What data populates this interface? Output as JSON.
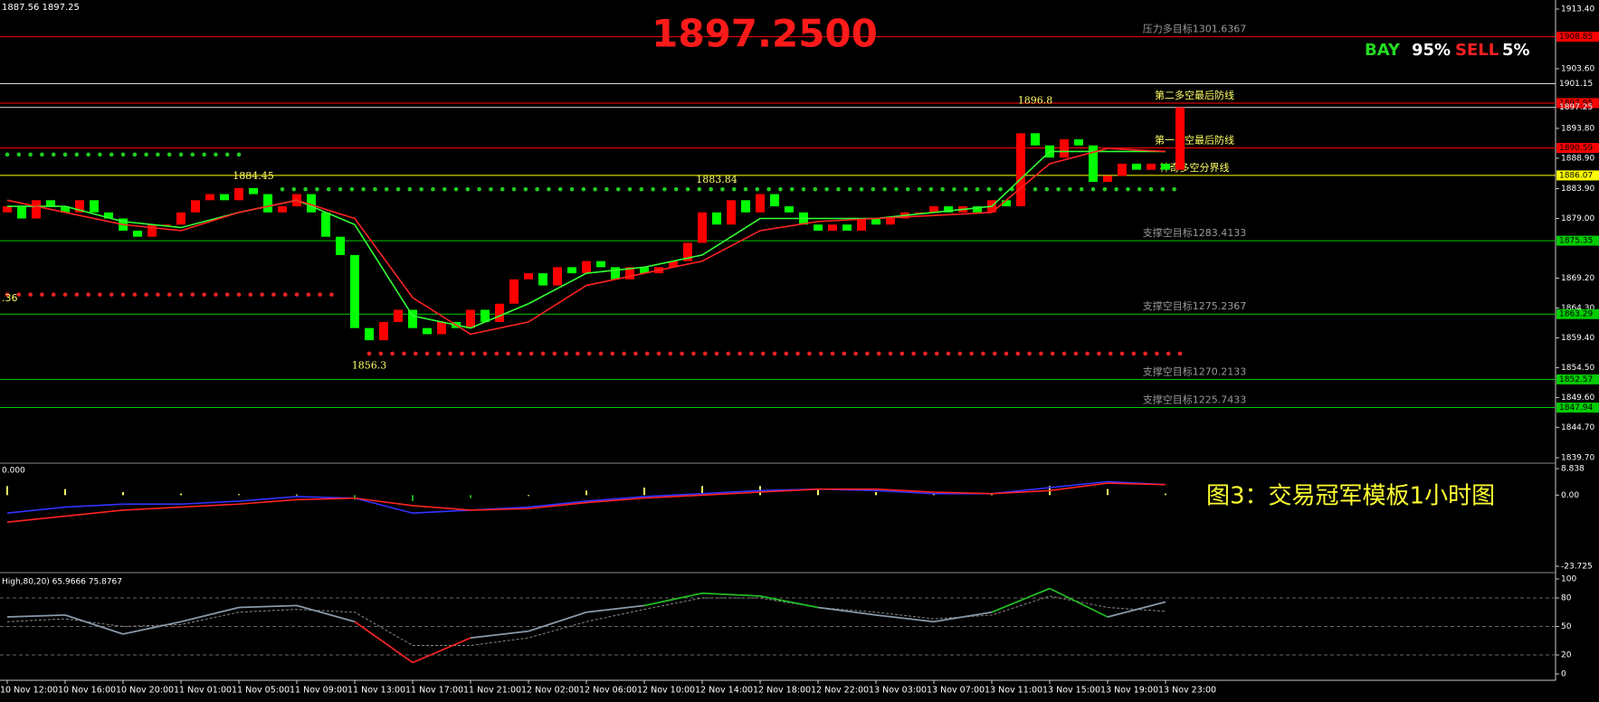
{
  "header": "1887.56 1897.25",
  "caption": "图3：交易冠军模板1小时图",
  "chart_data": [
    {
      "type": "candlestick",
      "price_label": "1897.2500",
      "signals": {
        "names": [
          "BAY",
          "SELL"
        ],
        "values": [
          95,
          5
        ],
        "value_labels": [
          "95%",
          "5%"
        ],
        "colors": [
          "#22dd22",
          "#ff2020"
        ]
      },
      "categories": [
        "10 Nov 12:00",
        "10 Nov 16:00",
        "10 Nov 20:00",
        "11 Nov 01:00",
        "11 Nov 05:00",
        "11 Nov 09:00",
        "11 Nov 13:00",
        "11 Nov 17:00",
        "11 Nov 21:00",
        "12 Nov 02:00",
        "12 Nov 06:00",
        "12 Nov 10:00",
        "12 Nov 14:00",
        "12 Nov 18:00",
        "12 Nov 22:00",
        "13 Nov 03:00",
        "13 Nov 07:00",
        "13 Nov 11:00",
        "13 Nov 15:00",
        "13 Nov 19:00",
        "13 Nov 23:00"
      ],
      "open": [
        1880,
        1881,
        1879,
        1882,
        1881,
        1880,
        1882,
        1880,
        1879,
        1877,
        1876,
        1878,
        1878,
        1880,
        1882,
        1883,
        1882,
        1884,
        1883,
        1880,
        1881,
        1883,
        1880,
        1876,
        1873,
        1861,
        1859,
        1862,
        1864,
        1861,
        1860,
        1862,
        1861,
        1864,
        1862,
        1865,
        1869,
        1870,
        1868,
        1871,
        1870,
        1872,
        1871,
        1869,
        1871,
        1870,
        1871,
        1872,
        1875,
        1880,
        1878,
        1882,
        1880,
        1883,
        1881,
        1880,
        1878,
        1877,
        1878,
        1877,
        1879,
        1878,
        1879,
        1880,
        1880,
        1881,
        1880,
        1881,
        1880,
        1882,
        1881,
        1893,
        1891,
        1889,
        1892,
        1891,
        1885,
        1886,
        1888,
        1887,
        1888,
        1887
      ],
      "close": [
        1881,
        1879,
        1882,
        1881,
        1880,
        1882,
        1880,
        1879,
        1877,
        1876,
        1878,
        1878,
        1880,
        1882,
        1883,
        1882,
        1884,
        1883,
        1880,
        1881,
        1883,
        1880,
        1876,
        1873,
        1861,
        1859,
        1862,
        1864,
        1861,
        1860,
        1862,
        1861,
        1864,
        1862,
        1865,
        1869,
        1870,
        1868,
        1871,
        1870,
        1872,
        1871,
        1869,
        1871,
        1870,
        1871,
        1872,
        1875,
        1880,
        1878,
        1882,
        1880,
        1883,
        1881,
        1880,
        1878,
        1877,
        1878,
        1877,
        1879,
        1878,
        1879,
        1880,
        1880,
        1881,
        1880,
        1881,
        1880,
        1882,
        1881,
        1893,
        1891,
        1889,
        1892,
        1891,
        1885,
        1886,
        1888,
        1887,
        1888,
        1887,
        1897.25
      ],
      "up_color": "#ff0000",
      "down_color": "#00ff00",
      "ylim": [
        1839.7,
        1913.4
      ],
      "yticks": [
        {
          "value": 1913.4,
          "label": "1913.40"
        },
        {
          "value": 1903.6,
          "label": "1903.60"
        },
        {
          "value": 1893.8,
          "label": "1893.80"
        },
        {
          "value": 1888.9,
          "label": "1888.90"
        },
        {
          "value": 1883.9,
          "label": "1883.90"
        },
        {
          "value": 1879,
          "label": "1879.00"
        },
        {
          "value": 1869.2,
          "label": "1869.20"
        },
        {
          "value": 1864.3,
          "label": "1864.30"
        },
        {
          "value": 1859.4,
          "label": "1859.40"
        },
        {
          "value": 1854.5,
          "label": "1854.50"
        },
        {
          "value": 1849.6,
          "label": "1849.60"
        },
        {
          "value": 1844.7,
          "label": "1844.70"
        },
        {
          "value": 1839.7,
          "label": "1839.70"
        }
      ],
      "levels": [
        {
          "value": 1908.85,
          "color": "#ff0000",
          "box": "#ff0000",
          "text": "压力多目标1301.6367",
          "text_color": "#999999"
        },
        {
          "value": 1901.15,
          "color": "#dddddd"
        },
        {
          "value": 1897.95,
          "color": "#ff0000",
          "box": "#ff0000",
          "text": "第二多空最后防线",
          "text_color": "#ffff66"
        },
        {
          "value": 1897.25,
          "color": "#dddddd"
        },
        {
          "value": 1890.59,
          "color": "#ff0000",
          "box": "#ff0000",
          "text": "第一多空最后防线",
          "text_color": "#ffff66"
        },
        {
          "value": 1886.07,
          "color": "#ffff00",
          "box": "#ffff00",
          "text": "神奇多空分界线",
          "text_color": "#ffff66"
        },
        {
          "value": 1875.35,
          "color": "#00cc00",
          "box": "#00cc00",
          "text": "支撑空目标1283.4133",
          "text_color": "#999999"
        },
        {
          "value": 1863.29,
          "color": "#00cc00",
          "box": "#00cc00",
          "text": "支撑空目标1275.2367",
          "text_color": "#999999"
        },
        {
          "value": 1852.57,
          "color": "#00cc00",
          "box": "#00cc00",
          "text": "支撑空目标1270.2133",
          "text_color": "#999999"
        },
        {
          "value": 1847.94,
          "color": "#00cc00",
          "box": "#00cc00",
          "text": "支撑空目标1225.7433",
          "text_color": "#999999"
        }
      ],
      "dots": [
        {
          "value": 1889.5,
          "color": "#22cc22",
          "start": 0,
          "end": 16
        },
        {
          "value": 1883.8,
          "color": "#22cc22",
          "start": 19,
          "end": 81
        },
        {
          "value": 1866.5,
          "color": "#ee2222",
          "start": 0,
          "end": 23
        },
        {
          "value": 1856.8,
          "color": "#ee2222",
          "start": 25,
          "end": 81
        }
      ],
      "price_notes": [
        {
          "value": 1884.45,
          "index": 17,
          "side": "above"
        },
        {
          "value": 1883.84,
          "index": 49,
          "side": "above"
        },
        {
          "value": 1896.8,
          "index": 71,
          "side": "above"
        },
        {
          "value": 1856.3,
          "index": 25,
          "side": "below"
        }
      ],
      "edge_note": ".36",
      "series": [
        {
          "color": "#33ff33",
          "values": [
            1881,
            1881,
            1878.5,
            1877.5,
            1880,
            1882,
            1878,
            1863,
            1861,
            1865,
            1870,
            1871,
            1873,
            1879,
            1879,
            1879,
            1880,
            1881,
            1890,
            1890,
            1890
          ]
        },
        {
          "color": "#ff2222",
          "values": [
            1882,
            1880,
            1878,
            1877,
            1880,
            1882,
            1879,
            1866,
            1860,
            1862,
            1868,
            1870,
            1872,
            1877,
            1878.5,
            1879,
            1879.5,
            1880,
            1888,
            1890.5,
            1890
          ]
        }
      ]
    },
    {
      "type": "macd",
      "label": "0.000",
      "ylim": [
        -23.725,
        8.838
      ],
      "yticks": [
        -23.725,
        {
          "value": 0,
          "label": "0.00"
        },
        8.838
      ],
      "histogram": [
        3,
        2,
        1,
        0.5,
        0.3,
        0.2,
        -1.5,
        -2,
        -1,
        0,
        1.5,
        2.5,
        3,
        3,
        2,
        1,
        0.5,
        0.5,
        3,
        2,
        0.5
      ],
      "hist_colors": [
        "#ffff66",
        "#22aa22"
      ],
      "series": [
        {
          "color": "#3333ff",
          "values": [
            -6,
            -4,
            -3,
            -3,
            -2,
            -0.5,
            -1,
            -6,
            -5,
            -4,
            -2,
            -0.5,
            0.5,
            1.5,
            2,
            1.5,
            0.5,
            0.5,
            2.5,
            4.5,
            3.5
          ]
        },
        {
          "color": "#ff2222",
          "values": [
            -9,
            -7,
            -5,
            -4,
            -3,
            -1.5,
            -1,
            -3.5,
            -5,
            -4.5,
            -2.5,
            -1,
            0,
            1,
            2,
            2,
            1,
            0.5,
            1.5,
            4,
            3.5
          ]
        }
      ]
    },
    {
      "type": "stochastic",
      "label": "High,80,20) 65.9666 75.8767",
      "ylim": [
        0,
        100
      ],
      "yticks": [
        0,
        20,
        50,
        80,
        100
      ],
      "bands": [
        20,
        50,
        80
      ],
      "colors": {
        "line": "#8899aa",
        "high": "#22bb22",
        "low": "#ee2222",
        "signal": "#888888"
      },
      "series": [
        {
          "values": [
            60,
            62,
            42,
            55,
            70,
            72,
            55,
            12,
            38,
            45,
            65,
            72,
            85,
            82,
            70,
            62,
            55,
            65,
            90,
            60,
            75.8767
          ]
        },
        {
          "values": [
            55,
            58,
            50,
            52,
            65,
            68,
            65,
            30,
            30,
            38,
            55,
            68,
            80,
            80,
            70,
            65,
            58,
            62,
            82,
            70,
            65.9666
          ]
        }
      ]
    }
  ]
}
